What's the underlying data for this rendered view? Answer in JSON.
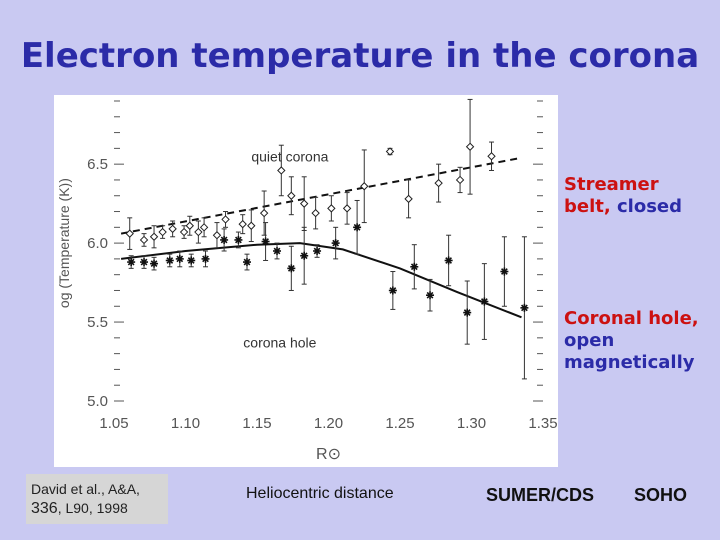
{
  "slide": {
    "title": "Electron temperature in the corona",
    "streamer_word1": "Streamer",
    "streamer_word2": "belt,",
    "streamer_word3": "closed",
    "hole_line1": "Coronal hole,",
    "hole_line2": "open",
    "hole_line3": "magnetically",
    "citation_line1": "David et al., A&A,",
    "citation_vol": "336",
    "citation_rest": ", L90, 1998",
    "footer_helio": "Heliocentric distance",
    "footer_instr": "SUMER/CDS",
    "footer_mission": "SOHO"
  },
  "colors": {
    "background": "#c9c9f2",
    "title": "#2b2ba8",
    "streamer": "#cc1111",
    "hole": "#2b2ba8"
  },
  "chart_data": {
    "type": "scatter",
    "xlabel": "R⊙",
    "ylabel": "og (Temperature (K))",
    "xlim": [
      1.05,
      1.35
    ],
    "ylim": [
      5.0,
      6.9
    ],
    "xticks": [
      "1.05",
      "1.10",
      "1.15",
      "1.20",
      "1.25",
      "1.30",
      "1.35"
    ],
    "yticks": [
      "5.0",
      "5.5",
      "6.0",
      "6.5"
    ],
    "annotations": [
      "quiet corona",
      "corona hole"
    ],
    "series": [
      {
        "marker": "diamond",
        "fit": "dashed",
        "fit_line": [
          [
            1.055,
            6.06
          ],
          [
            1.335,
            6.54
          ]
        ],
        "points": [
          [
            1.061,
            6.06,
            0.1
          ],
          [
            1.071,
            6.02,
            0.04
          ],
          [
            1.078,
            6.04,
            0.07
          ],
          [
            1.084,
            6.07,
            0.04
          ],
          [
            1.091,
            6.09,
            0.05
          ],
          [
            1.099,
            6.07,
            0.04
          ],
          [
            1.103,
            6.11,
            0.06
          ],
          [
            1.109,
            6.07,
            0.07
          ],
          [
            1.113,
            6.1,
            0.06
          ],
          [
            1.122,
            6.05,
            0.08
          ],
          [
            1.128,
            6.15,
            0.05
          ],
          [
            1.14,
            6.12,
            0.06
          ],
          [
            1.146,
            6.11,
            0.1
          ],
          [
            1.155,
            6.19,
            0.14
          ],
          [
            1.167,
            6.46,
            0.16
          ],
          [
            1.174,
            6.3,
            0.12
          ],
          [
            1.183,
            6.25,
            0.17
          ],
          [
            1.191,
            6.19,
            0.1
          ],
          [
            1.202,
            6.22,
            0.08
          ],
          [
            1.213,
            6.22,
            0.1
          ],
          [
            1.225,
            6.36,
            0.23
          ],
          [
            1.243,
            6.58,
            0.02
          ],
          [
            1.256,
            6.28,
            0.12
          ],
          [
            1.277,
            6.38,
            0.12
          ],
          [
            1.292,
            6.4,
            0.08
          ],
          [
            1.299,
            6.61,
            0.3
          ],
          [
            1.314,
            6.55,
            0.09
          ]
        ]
      },
      {
        "marker": "asterisk",
        "fit": "solid",
        "fit_line": [
          [
            1.055,
            5.9
          ],
          [
            1.1,
            5.95
          ],
          [
            1.15,
            5.99
          ],
          [
            1.18,
            6.0
          ],
          [
            1.21,
            5.96
          ],
          [
            1.25,
            5.84
          ],
          [
            1.29,
            5.69
          ],
          [
            1.335,
            5.53
          ]
        ],
        "points": [
          [
            1.062,
            5.88,
            0.04
          ],
          [
            1.071,
            5.88,
            0.04
          ],
          [
            1.078,
            5.87,
            0.04
          ],
          [
            1.089,
            5.89,
            0.04
          ],
          [
            1.096,
            5.9,
            0.05
          ],
          [
            1.104,
            5.89,
            0.04
          ],
          [
            1.114,
            5.9,
            0.05
          ],
          [
            1.127,
            6.02,
            0.07
          ],
          [
            1.137,
            6.02,
            0.05
          ],
          [
            1.143,
            5.88,
            0.05
          ],
          [
            1.156,
            6.01,
            0.12
          ],
          [
            1.164,
            5.95,
            0.05
          ],
          [
            1.174,
            5.84,
            0.14
          ],
          [
            1.183,
            5.92,
            0.18
          ],
          [
            1.192,
            5.95,
            0.04
          ],
          [
            1.205,
            6.0,
            0.1
          ],
          [
            1.22,
            6.1,
            0.17
          ],
          [
            1.245,
            5.7,
            0.12
          ],
          [
            1.26,
            5.85,
            0.14
          ],
          [
            1.271,
            5.67,
            0.1
          ],
          [
            1.284,
            5.89,
            0.16
          ],
          [
            1.297,
            5.56,
            0.2
          ],
          [
            1.309,
            5.63,
            0.24
          ],
          [
            1.323,
            5.82,
            0.22
          ],
          [
            1.337,
            5.59,
            0.45
          ]
        ]
      }
    ]
  }
}
